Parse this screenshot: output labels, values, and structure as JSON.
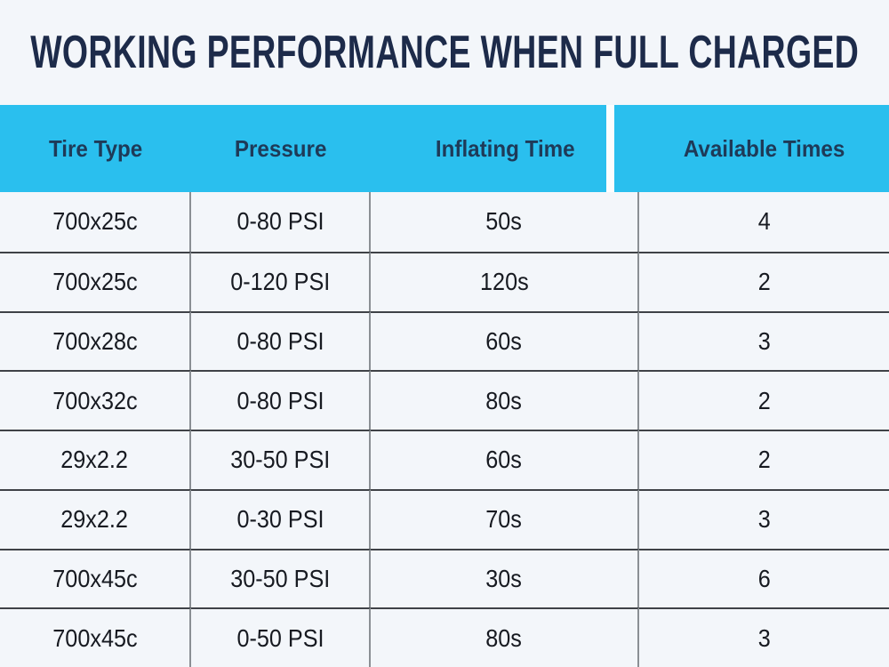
{
  "title": "WORKING PERFORMANCE WHEN FULL CHARGED",
  "colors": {
    "accent_cyan": "#2abfee",
    "title_navy": "#1d2b4a",
    "header_text_navy": "#1e3a58",
    "body_text": "#171a21",
    "background": "#f3f6fa",
    "row_divider": "#3f4247",
    "column_divider": "#8a8f94",
    "header_gap": "#fbfdfe"
  },
  "chart_data": {
    "type": "table",
    "title": "WORKING PERFORMANCE WHEN FULL CHARGED",
    "columns": [
      "Tire Type",
      "Pressure",
      "Inflating Time",
      "Available Times"
    ],
    "rows": [
      [
        "700x25c",
        "0-80 PSI",
        "50s",
        "4"
      ],
      [
        "700x25c",
        "0-120 PSI",
        "120s",
        "2"
      ],
      [
        "700x28c",
        "0-80 PSI",
        "60s",
        "3"
      ],
      [
        "700x32c",
        "0-80 PSI",
        "80s",
        "2"
      ],
      [
        "29x2.2",
        "30-50 PSI",
        "60s",
        "2"
      ],
      [
        "29x2.2",
        "0-30 PSI",
        "70s",
        "3"
      ],
      [
        "700x45c",
        "30-50 PSI",
        "30s",
        "6"
      ],
      [
        "700x45c",
        "0-50 PSI",
        "80s",
        "3"
      ]
    ]
  }
}
